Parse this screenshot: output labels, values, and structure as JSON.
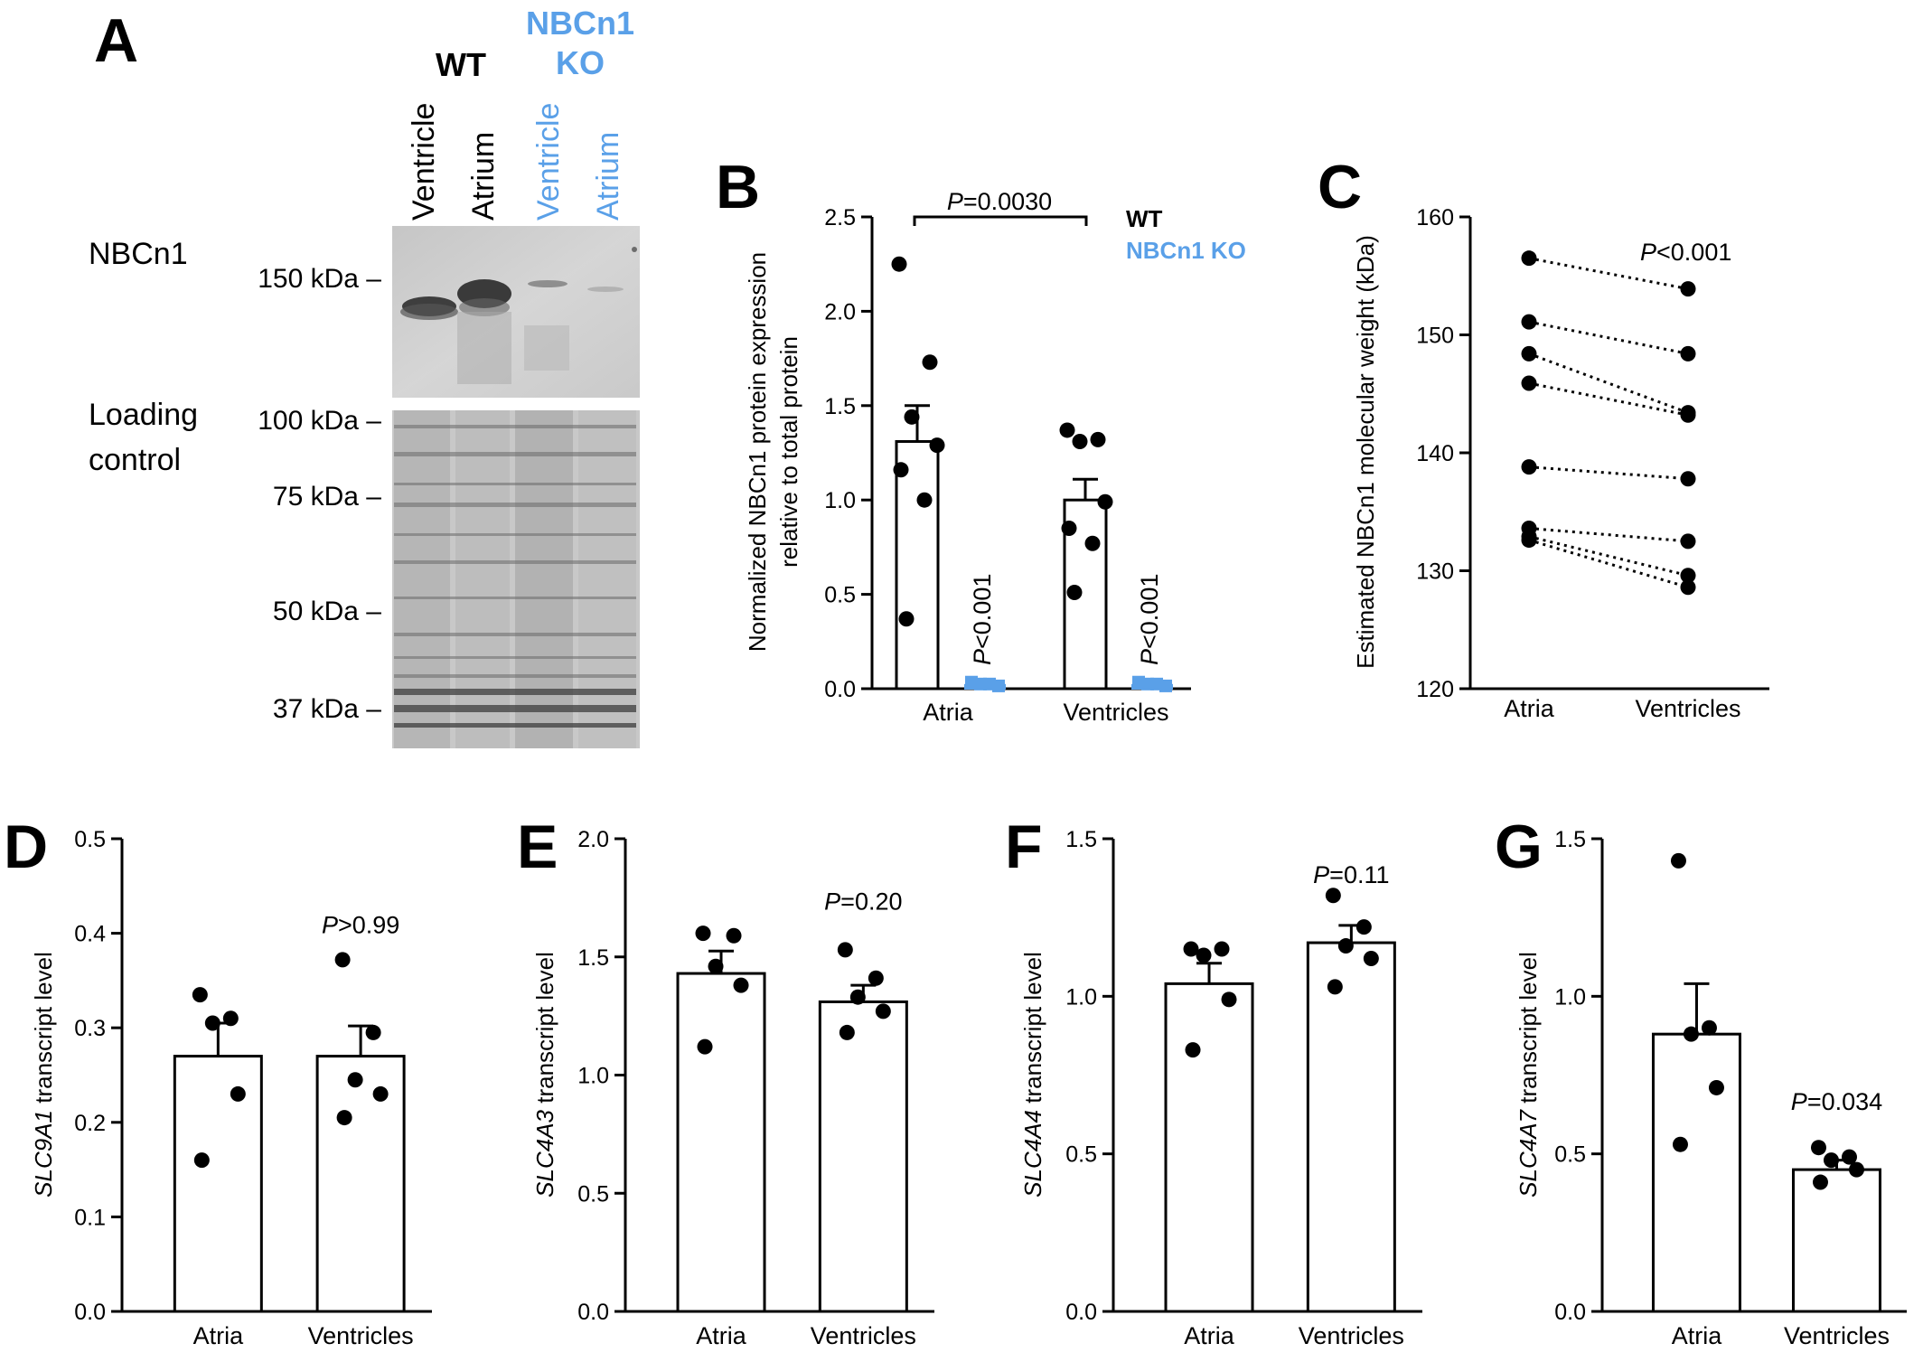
{
  "colors": {
    "wt": "#000000",
    "ko": "#5aa0e8",
    "blot_bg": "#d6d6d6"
  },
  "panel_a": {
    "letter": "A",
    "group_wt": "WT",
    "group_ko_line1": "NBCn1",
    "group_ko_line2": "KO",
    "lanes": [
      "Ventricle",
      "Atrium",
      "Ventricle",
      "Atrium"
    ],
    "row_top": "NBCn1",
    "row_bottom_line1": "Loading",
    "row_bottom_line2": "control",
    "markers": [
      "150 kDa –",
      "100 kDa –",
      "75 kDa –",
      "50 kDa –",
      "37 kDa –"
    ]
  },
  "chart_data": [
    {
      "id": "B",
      "type": "bar",
      "ylabel_line1": "Normalized NBCn1 protein expression",
      "ylabel_line2": "relative to total protein",
      "categories": [
        "Atria",
        "Ventricles"
      ],
      "ylim": [
        0,
        2.5
      ],
      "yticks": [
        "0.0",
        "0.5",
        "1.0",
        "1.5",
        "2.0",
        "2.5"
      ],
      "legend": [
        "WT",
        "NBCn1 KO"
      ],
      "series": [
        {
          "name": "WT",
          "means": [
            1.31,
            1.0
          ],
          "sem": [
            0.19,
            0.11
          ],
          "points": [
            [
              2.25,
              1.73,
              1.44,
              1.29,
              1.16,
              1.0,
              0.37
            ],
            [
              1.37,
              1.32,
              1.31,
              0.99,
              0.85,
              0.77,
              0.51
            ]
          ]
        },
        {
          "name": "NBCn1 KO",
          "means": [
            0.02,
            0.02
          ],
          "sem": [
            0.005,
            0.005
          ],
          "points": [
            [
              0.03,
              0.02,
              0.02,
              0.01
            ],
            [
              0.03,
              0.02,
              0.02,
              0.01
            ]
          ]
        }
      ],
      "annotations": {
        "bracket": "=0.0030",
        "ko_atria": "<0.001",
        "ko_ventricles": "<0.001",
        "p": "P"
      }
    },
    {
      "id": "C",
      "type": "line",
      "ylabel": "Estimated NBCn1 molecular weight (kDa)",
      "categories": [
        "Atria",
        "Ventricles"
      ],
      "ylim": [
        120,
        160
      ],
      "yticks": [
        "120",
        "130",
        "140",
        "150",
        "160"
      ],
      "pairs": [
        [
          156.5,
          153.9
        ],
        [
          151.1,
          148.4
        ],
        [
          148.4,
          143.4
        ],
        [
          145.9,
          143.2
        ],
        [
          138.8,
          137.8
        ],
        [
          133.6,
          132.5
        ],
        [
          132.9,
          129.6
        ],
        [
          132.6,
          128.6
        ]
      ],
      "annotation": {
        "p": "P",
        "text": "<0.001"
      }
    },
    {
      "id": "D",
      "type": "bar",
      "ylabel_gene": "SLC9A1",
      "ylabel_rest": " transcript level",
      "categories": [
        "Atria",
        "Ventricles"
      ],
      "ylim": [
        0,
        0.5
      ],
      "yticks": [
        "0.0",
        "0.1",
        "0.2",
        "0.3",
        "0.4",
        "0.5"
      ],
      "means": [
        0.27,
        0.27
      ],
      "sem": [
        0.035,
        0.032
      ],
      "points": [
        [
          0.335,
          0.31,
          0.305,
          0.23,
          0.16
        ],
        [
          0.372,
          0.295,
          0.245,
          0.23,
          0.205
        ]
      ],
      "annotation": {
        "p": "P",
        "text": ">0.99"
      }
    },
    {
      "id": "E",
      "type": "bar",
      "ylabel_gene": "SLC4A3",
      "ylabel_rest": " transcript level",
      "categories": [
        "Atria",
        "Ventricles"
      ],
      "ylim": [
        0,
        2.0
      ],
      "yticks": [
        "0.0",
        "0.5",
        "1.0",
        "1.5",
        "2.0"
      ],
      "means": [
        1.43,
        1.31
      ],
      "sem": [
        0.095,
        0.07
      ],
      "points": [
        [
          1.6,
          1.59,
          1.46,
          1.38,
          1.12
        ],
        [
          1.53,
          1.41,
          1.33,
          1.27,
          1.18
        ]
      ],
      "annotation": {
        "p": "P",
        "text": "=0.20"
      }
    },
    {
      "id": "F",
      "type": "bar",
      "ylabel_gene": "SLC4A4",
      "ylabel_rest": " transcript level",
      "categories": [
        "Atria",
        "Ventricles"
      ],
      "ylim": [
        0,
        1.5
      ],
      "yticks": [
        "0.0",
        "0.5",
        "1.0",
        "1.5"
      ],
      "means": [
        1.04,
        1.17
      ],
      "sem": [
        0.065,
        0.055
      ],
      "points": [
        [
          1.15,
          1.15,
          1.13,
          0.99,
          0.83
        ],
        [
          1.32,
          1.22,
          1.16,
          1.12,
          1.03
        ]
      ],
      "annotation": {
        "p": "P",
        "text": "=0.11"
      }
    },
    {
      "id": "G",
      "type": "bar",
      "ylabel_gene": "SLC4A7",
      "ylabel_rest": " transcript level",
      "categories": [
        "Atria",
        "Ventricles"
      ],
      "ylim": [
        0,
        1.5
      ],
      "yticks": [
        "0.0",
        "0.5",
        "1.0",
        "1.5"
      ],
      "means": [
        0.88,
        0.45
      ],
      "sem": [
        0.16,
        0.03
      ],
      "points": [
        [
          1.43,
          0.9,
          0.88,
          0.71,
          0.53
        ],
        [
          0.52,
          0.49,
          0.48,
          0.45,
          0.41
        ]
      ],
      "annotation": {
        "p": "P",
        "text": "=0.034"
      }
    }
  ]
}
